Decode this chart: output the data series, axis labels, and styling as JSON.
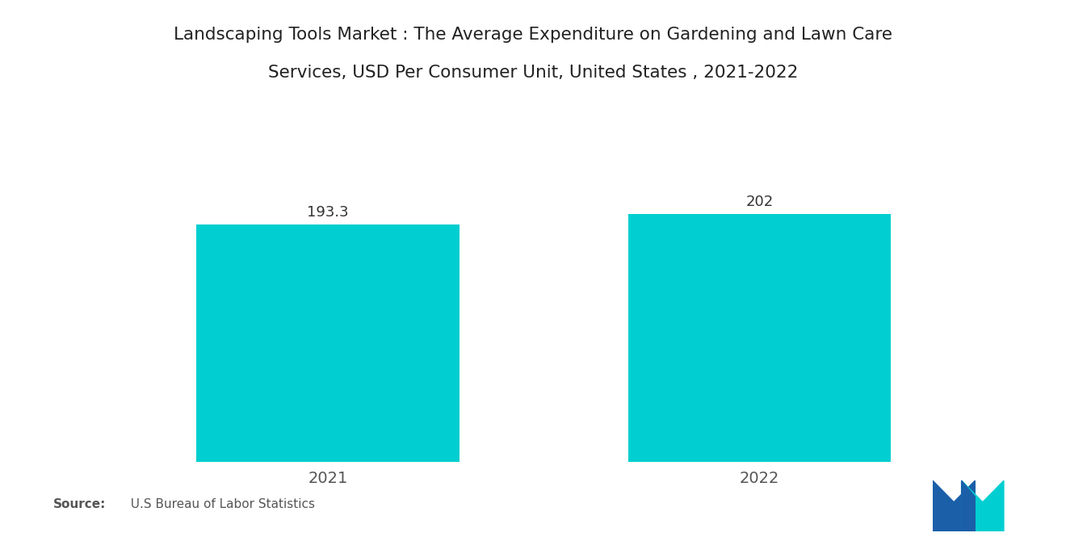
{
  "title_line1": "Landscaping Tools Market : The Average Expenditure on Gardening and Lawn Care",
  "title_line2": "Services, USD Per Consumer Unit, United States , 2021-2022",
  "categories": [
    "2021",
    "2022"
  ],
  "values": [
    193.3,
    202
  ],
  "bar_color": "#00CED1",
  "bar_width": 0.28,
  "value_labels": [
    "193.3",
    "202"
  ],
  "ylim": [
    0,
    280
  ],
  "background_color": "#ffffff",
  "title_fontsize": 15.5,
  "label_fontsize": 13,
  "tick_fontsize": 14,
  "source_fontsize": 11,
  "bar_positions": [
    0.27,
    0.73
  ],
  "xlim": [
    0,
    1
  ],
  "blue_color": "#1a5fa8",
  "teal_color": "#00CED1"
}
